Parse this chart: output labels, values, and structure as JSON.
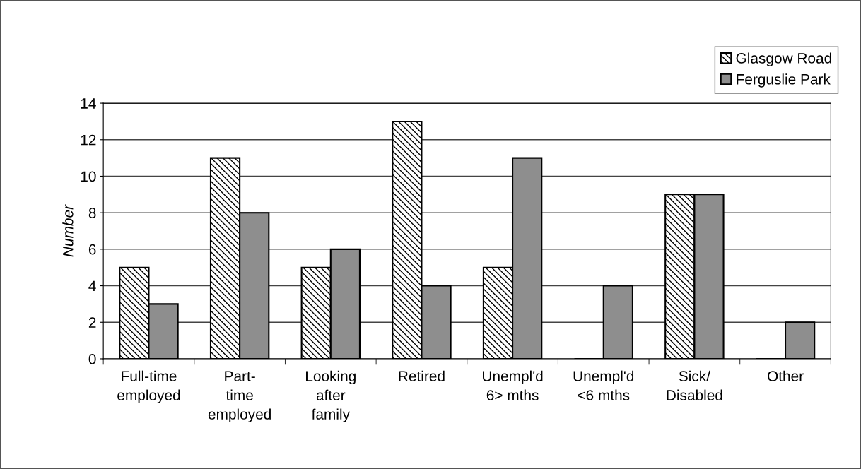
{
  "chart_data": {
    "type": "bar",
    "ylabel": "Number",
    "categories": [
      "Full-time\nemployed",
      "Part-\ntime\nemployed",
      "Looking\nafter\nfamily",
      "Retired",
      "Unempl'd\n6> mths",
      "Unempl'd\n<6 mths",
      "Sick/\nDisabled",
      "Other"
    ],
    "series": [
      {
        "name": "Glasgow Road",
        "color": "#000000",
        "values": [
          5,
          11,
          5,
          13,
          5,
          0,
          9,
          0
        ]
      },
      {
        "name": "Ferguslie Park",
        "color": "#8e8e8e",
        "values": [
          3,
          8,
          6,
          4,
          11,
          4,
          9,
          2
        ]
      }
    ],
    "ylim": [
      0,
      14
    ],
    "yticks": [
      0,
      2,
      4,
      6,
      8,
      10,
      12,
      14
    ],
    "grid": "y",
    "legend": "top right"
  }
}
